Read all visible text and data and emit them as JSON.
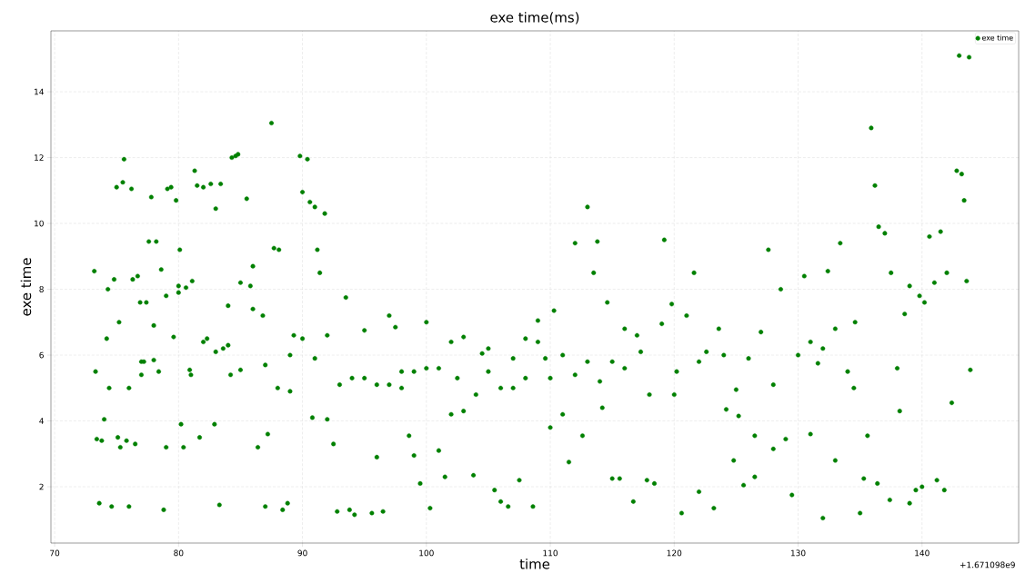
{
  "chart_data": {
    "type": "scatter",
    "title": "exe time(ms)",
    "xlabel": "time",
    "ylabel": "exe time",
    "annotations": [
      "+1.671098e9"
    ],
    "xlim": [
      69.7,
      147.8
    ],
    "ylim": [
      0.29,
      15.85
    ],
    "xticks": [
      70,
      80,
      90,
      100,
      110,
      120,
      130,
      140
    ],
    "yticks": [
      2,
      4,
      6,
      8,
      10,
      12,
      14
    ],
    "grid": true,
    "legend": "top right",
    "marker": "circle",
    "series": [
      {
        "name": "exe time",
        "color": "#008000",
        "x": [
          73.2,
          73.3,
          73.4,
          73.6,
          73.8,
          74,
          74.2,
          74.3,
          74.4,
          74.6,
          74.8,
          75,
          75.1,
          75.2,
          75.3,
          75.5,
          75.6,
          75.8,
          76,
          76.2,
          76.3,
          76.5,
          76.7,
          76.9,
          77,
          77.2,
          77.4,
          77.6,
          77.8,
          78,
          78.2,
          78.4,
          78.6,
          78.8,
          79,
          79.1,
          79.4,
          79.6,
          79.8,
          80,
          80.1,
          80.2,
          80.4,
          80.6,
          80.9,
          81.1,
          81.3,
          81.5,
          81.7,
          82,
          82.3,
          82.6,
          82.9,
          83,
          83.3,
          83.4,
          83.6,
          84,
          84.2,
          84.3,
          84.6,
          84.8,
          85,
          85.5,
          85.8,
          86,
          86.4,
          86.8,
          87,
          87.2,
          87.5,
          87.7,
          88.1,
          88.4,
          88.8,
          89,
          89.3,
          89.8,
          90,
          90.4,
          90.6,
          90.8,
          91,
          91.2,
          91.4,
          91.8,
          92,
          92.5,
          92.8,
          93.5,
          93.8,
          94.2,
          95,
          95.6,
          96,
          96.5,
          97,
          97.5,
          98,
          98.6,
          99,
          99.5,
          100,
          100.3,
          101,
          101.5,
          102,
          102.5,
          103,
          103.8,
          104.5,
          105,
          105.5,
          106,
          106.6,
          107,
          107.5,
          108,
          108.6,
          109,
          109.6,
          110,
          110.3,
          111,
          111.5,
          112,
          112.6,
          113,
          113.5,
          113.8,
          114.2,
          114.6,
          115,
          115.6,
          116,
          116.7,
          117.3,
          117.8,
          118.4,
          119,
          119.2,
          119.8,
          120.2,
          120.6,
          121,
          121.6,
          122,
          122.6,
          123.2,
          123.6,
          124.2,
          124.8,
          125.2,
          125.6,
          126,
          126.5,
          127,
          127.6,
          128,
          128.6,
          129,
          129.5,
          130,
          130.5,
          131,
          131.6,
          132,
          132.4,
          133,
          133.4,
          134,
          134.6,
          135,
          135.3,
          135.6,
          135.9,
          136.2,
          136.5,
          137,
          137.5,
          138,
          138.2,
          138.6,
          139,
          139.5,
          139.8,
          140.2,
          140.6,
          141,
          141.5,
          142,
          142.4,
          142.8,
          143,
          143.2,
          143.4,
          143.6,
          143.8,
          143.9,
          141.8,
          141.2,
          140,
          139,
          137.4,
          136.4,
          134.5,
          133,
          132,
          131,
          128,
          126.5,
          125,
          124,
          122,
          120,
          118,
          117,
          116,
          115,
          114,
          113,
          112,
          111,
          110,
          109,
          108,
          107,
          106,
          105,
          104,
          103,
          102,
          101,
          100,
          99,
          98,
          97,
          96,
          95,
          94,
          93,
          92,
          91,
          90,
          89,
          88,
          87,
          86,
          85,
          84,
          83,
          82,
          81,
          80,
          79,
          78,
          77,
          76
        ],
        "values": [
          8.55,
          5.5,
          3.45,
          1.5,
          3.4,
          4.05,
          6.5,
          8,
          5,
          1.4,
          8.3,
          11.1,
          3.5,
          7,
          3.2,
          11.25,
          11.95,
          3.4,
          1.4,
          11.05,
          8.3,
          3.3,
          8.4,
          7.6,
          5.4,
          5.8,
          7.6,
          9.45,
          10.8,
          5.85,
          9.45,
          5.5,
          8.6,
          1.3,
          3.2,
          11.05,
          11.1,
          6.55,
          10.7,
          8.1,
          9.2,
          3.9,
          3.2,
          8.05,
          5.55,
          8.25,
          11.6,
          11.15,
          3.5,
          11.1,
          6.5,
          11.2,
          3.9,
          10.45,
          1.45,
          11.2,
          6.2,
          6.3,
          5.4,
          12,
          12.05,
          12.1,
          5.55,
          10.75,
          8.1,
          8.7,
          3.2,
          7.2,
          1.4,
          3.6,
          13.05,
          9.25,
          9.2,
          1.3,
          1.5,
          4.9,
          6.6,
          12.05,
          10.95,
          11.95,
          10.65,
          4.1,
          10.5,
          9.2,
          8.5,
          10.3,
          4.05,
          3.3,
          1.25,
          7.75,
          1.3,
          1.15,
          6.75,
          1.2,
          2.9,
          1.25,
          7.2,
          6.85,
          5.5,
          3.55,
          2.95,
          2.1,
          7,
          1.35,
          3.1,
          2.3,
          4.2,
          5.3,
          6.55,
          2.35,
          6.05,
          6.2,
          1.9,
          1.55,
          1.4,
          5.9,
          2.2,
          6.5,
          1.4,
          7.05,
          5.9,
          3.8,
          7.35,
          4.2,
          2.75,
          9.4,
          3.55,
          10.5,
          8.5,
          9.45,
          4.4,
          7.6,
          2.25,
          2.25,
          6.8,
          1.55,
          6.1,
          2.2,
          2.1,
          6.95,
          9.5,
          7.55,
          5.5,
          1.2,
          7.2,
          8.5,
          1.85,
          6.1,
          1.35,
          6.8,
          4.35,
          2.8,
          4.15,
          2.05,
          5.9,
          2.3,
          6.7,
          9.2,
          3.15,
          8.0,
          3.45,
          1.75,
          6.0,
          8.4,
          3.6,
          5.75,
          1.05,
          8.55,
          2.8,
          9.4,
          5.5,
          7.0,
          1.2,
          2.25,
          3.55,
          12.9,
          11.15,
          9.9,
          9.7,
          8.5,
          5.6,
          4.3,
          7.25,
          8.1,
          1.9,
          7.8,
          7.6,
          9.6,
          8.2,
          9.75,
          8.5,
          4.55,
          11.6,
          15.1,
          11.5,
          10.7,
          8.25,
          15.05,
          5.55,
          1.9,
          2.2,
          2.0,
          1.5,
          1.6,
          2.1,
          5.0,
          6.8,
          6.2,
          6.4,
          5.1,
          3.55,
          4.95,
          6.0,
          5.8,
          4.8,
          4.8,
          6.6,
          5.6,
          5.8,
          5.2,
          5.8,
          5.4,
          6.0,
          5.3,
          6.4,
          5.3,
          5.0,
          5.0,
          5.5,
          4.8,
          4.3,
          6.4,
          5.6,
          5.6,
          5.5,
          5.0,
          5.1,
          5.1,
          5.3,
          5.3,
          5.1,
          6.6,
          5.9,
          6.5,
          6.0,
          5.0,
          5.7,
          7.4,
          8.2,
          7.5,
          6.1,
          6.4,
          5.4,
          7.9,
          7.8,
          6.9,
          5.8,
          5.0
        ]
      }
    ]
  }
}
